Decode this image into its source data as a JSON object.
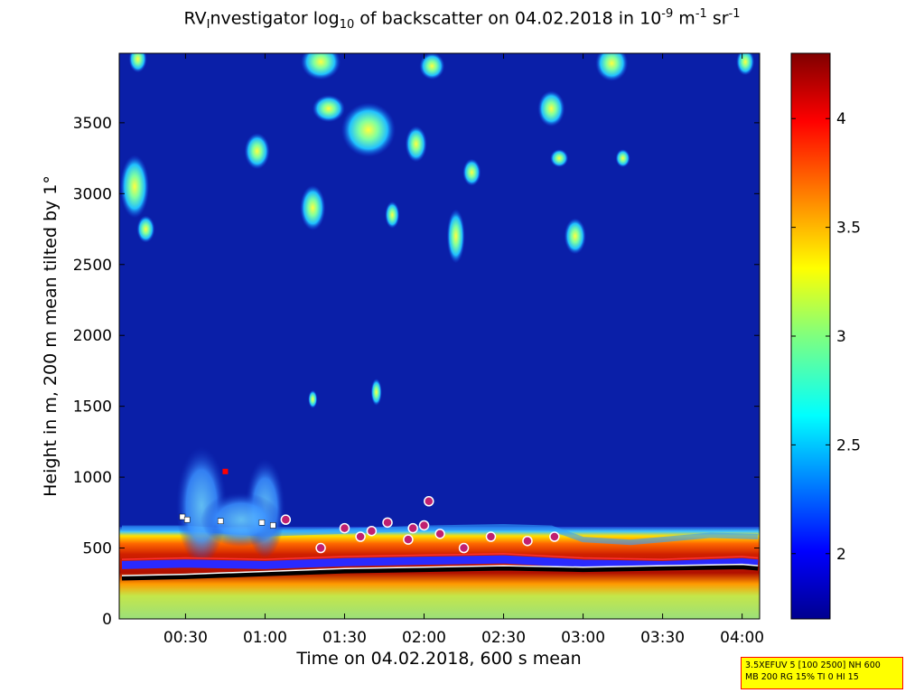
{
  "title": {
    "prefix": "RV",
    "sub1": "I",
    "part2": "nvestigator log",
    "sub2": "10",
    "part3": " of backscatter on 04.02.2018 in 10",
    "sup1": "-9",
    "part4": " m",
    "sup2": "-1",
    "part5": " sr",
    "sup3": "-1"
  },
  "info_box": {
    "line1": "3.5XEFUV 5 [100 2500] NH 600",
    "line2": "MB 200 RG 15% TI 0 HI 15"
  },
  "colors": {
    "background_field": "#0a1fa8",
    "near_surface": "#cc2200",
    "markers_circle": "#2a2aff",
    "marker_edge": "#ff3030"
  },
  "chart_data": {
    "type": "heatmap",
    "xlabel": "Time on 04.02.2018, 600 s mean",
    "ylabel": "Height in m, 200 m mean tilted by 1°",
    "xticks": [
      "00:30",
      "01:00",
      "01:30",
      "02:00",
      "02:30",
      "03:00",
      "03:30",
      "04:00"
    ],
    "xtick_hours": [
      0.5,
      1.0,
      1.5,
      2.0,
      2.5,
      3.0,
      3.5,
      4.0
    ],
    "xlim_hours": [
      0.083,
      4.11
    ],
    "yticks": [
      0,
      500,
      1000,
      1500,
      2000,
      2500,
      3000,
      3500
    ],
    "ylim": [
      0,
      3990
    ],
    "colorbar": {
      "ticks": [
        2,
        2.5,
        3,
        3.5,
        4
      ],
      "range": [
        1.7,
        4.3
      ],
      "colormap": "jet"
    },
    "mixing_layer_top_m": [
      [
        0.1,
        640
      ],
      [
        0.5,
        640
      ],
      [
        1.0,
        600
      ],
      [
        1.5,
        620
      ],
      [
        2.0,
        640
      ],
      [
        2.5,
        650
      ],
      [
        2.8,
        640
      ],
      [
        3.0,
        560
      ],
      [
        3.3,
        540
      ],
      [
        3.5,
        560
      ],
      [
        3.8,
        590
      ],
      [
        4.1,
        580
      ]
    ],
    "cloud_base_blue_line_m": [
      [
        0.1,
        380
      ],
      [
        0.5,
        390
      ],
      [
        1.0,
        380
      ],
      [
        1.5,
        400
      ],
      [
        2.0,
        410
      ],
      [
        2.5,
        420
      ],
      [
        3.0,
        390
      ],
      [
        3.5,
        380
      ],
      [
        4.0,
        400
      ],
      [
        4.1,
        390
      ]
    ],
    "black_line_m": [
      [
        0.1,
        290
      ],
      [
        0.5,
        300
      ],
      [
        1.0,
        320
      ],
      [
        1.5,
        340
      ],
      [
        2.0,
        350
      ],
      [
        2.5,
        360
      ],
      [
        3.0,
        350
      ],
      [
        3.5,
        360
      ],
      [
        4.0,
        370
      ],
      [
        4.1,
        360
      ]
    ],
    "white_squares": [
      [
        0.48,
        720
      ],
      [
        0.51,
        700
      ],
      [
        0.72,
        690
      ],
      [
        0.98,
        680
      ],
      [
        1.05,
        660
      ]
    ],
    "magenta_circles": [
      [
        1.13,
        700
      ],
      [
        1.5,
        640
      ],
      [
        1.67,
        620
      ],
      [
        1.77,
        680
      ],
      [
        2.0,
        660
      ],
      [
        2.03,
        830
      ],
      [
        1.93,
        640
      ],
      [
        2.1,
        600
      ],
      [
        2.25,
        500
      ],
      [
        2.42,
        580
      ],
      [
        2.65,
        550
      ],
      [
        2.82,
        580
      ],
      [
        1.35,
        500
      ],
      [
        1.6,
        580
      ],
      [
        1.9,
        560
      ]
    ],
    "red_square": [
      0.75,
      1040
    ]
  }
}
